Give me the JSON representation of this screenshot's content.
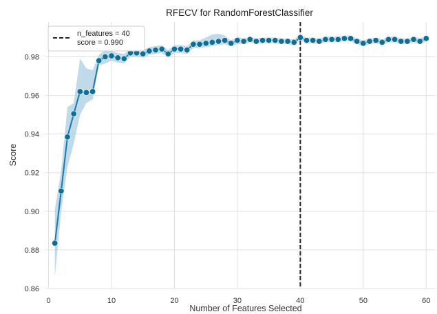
{
  "chart_data": {
    "type": "line",
    "title": "RFECV for RandomForestClassifier",
    "xlabel": "Number of Features Selected",
    "ylabel": "Score",
    "xlim": [
      -0.5,
      61.5
    ],
    "ylim": [
      0.86,
      0.998
    ],
    "xticks": [
      0,
      10,
      20,
      30,
      40,
      50,
      60
    ],
    "yticks": [
      0.86,
      0.88,
      0.9,
      0.92,
      0.94,
      0.96,
      0.98
    ],
    "ytick_labels": [
      "0.86",
      "0.88",
      "0.90",
      "0.92",
      "0.94",
      "0.96",
      "0.98"
    ],
    "grid": true,
    "legend": {
      "placement": "top-left",
      "entries": [
        "n_features = 40",
        "score = 0.990"
      ]
    },
    "colors": {
      "line": "#1f77a8",
      "marker": "#0f6e96",
      "band": "#a9cfe3",
      "grid": "#e0e0e0",
      "vline": "#222222",
      "background": "#ffffff"
    },
    "selected": {
      "n_features": 40,
      "score": 0.99
    },
    "series": [
      {
        "x": [
          1,
          2,
          3,
          4,
          5,
          6,
          7,
          8,
          9,
          10,
          11,
          12,
          13,
          14,
          15,
          16,
          17,
          18,
          19,
          20,
          21,
          22,
          23,
          24,
          25,
          26,
          27,
          28,
          29,
          30,
          31,
          32,
          33,
          34,
          35,
          36,
          37,
          38,
          39,
          40,
          41,
          42,
          43,
          44,
          45,
          46,
          47,
          48,
          49,
          50,
          51,
          52,
          53,
          54,
          55,
          56,
          57,
          58,
          59,
          60
        ],
        "values": [
          0.8835,
          0.9105,
          0.9385,
          0.9505,
          0.962,
          0.9615,
          0.962,
          0.978,
          0.98,
          0.9805,
          0.9795,
          0.979,
          0.982,
          0.982,
          0.9815,
          0.983,
          0.9835,
          0.984,
          0.9815,
          0.984,
          0.984,
          0.9835,
          0.9865,
          0.9865,
          0.987,
          0.9875,
          0.988,
          0.9885,
          0.987,
          0.9885,
          0.988,
          0.989,
          0.988,
          0.9885,
          0.9885,
          0.9885,
          0.988,
          0.988,
          0.9875,
          0.99,
          0.9885,
          0.9885,
          0.988,
          0.989,
          0.989,
          0.989,
          0.9895,
          0.9895,
          0.988,
          0.987,
          0.988,
          0.9885,
          0.9875,
          0.989,
          0.989,
          0.988,
          0.988,
          0.989,
          0.988,
          0.9895
        ],
        "band_lower": [
          0.866,
          0.9,
          0.923,
          0.935,
          0.95,
          0.956,
          0.958,
          0.9755,
          0.9765,
          0.978,
          0.977,
          0.9765,
          0.98,
          0.98,
          0.9795,
          0.981,
          0.9815,
          0.982,
          0.9795,
          0.982,
          0.982,
          0.9815,
          0.9845,
          0.9845,
          0.985,
          0.9855,
          0.986,
          0.9865,
          0.9855,
          0.9865,
          0.9865,
          0.9875,
          0.9865,
          0.987,
          0.987,
          0.987,
          0.9865,
          0.9865,
          0.986,
          0.9885,
          0.987,
          0.987,
          0.9865,
          0.9875,
          0.9875,
          0.9875,
          0.988,
          0.988,
          0.9865,
          0.9855,
          0.9865,
          0.987,
          0.986,
          0.9875,
          0.9875,
          0.9865,
          0.9865,
          0.9875,
          0.9865,
          0.988
        ],
        "band_upper": [
          0.901,
          0.921,
          0.954,
          0.956,
          0.979,
          0.974,
          0.973,
          0.981,
          0.9835,
          0.983,
          0.982,
          0.9815,
          0.984,
          0.984,
          0.9835,
          0.985,
          0.9855,
          0.986,
          0.9835,
          0.986,
          0.986,
          0.9855,
          0.9885,
          0.9885,
          0.99,
          0.9915,
          0.992,
          0.991,
          0.9885,
          0.9905,
          0.9895,
          0.9905,
          0.9895,
          0.99,
          0.99,
          0.99,
          0.9895,
          0.9895,
          0.989,
          0.9915,
          0.99,
          0.99,
          0.9895,
          0.9905,
          0.9905,
          0.9905,
          0.991,
          0.991,
          0.9895,
          0.9885,
          0.9895,
          0.99,
          0.989,
          0.9905,
          0.9905,
          0.9895,
          0.9895,
          0.9905,
          0.9895,
          0.991
        ]
      }
    ]
  }
}
